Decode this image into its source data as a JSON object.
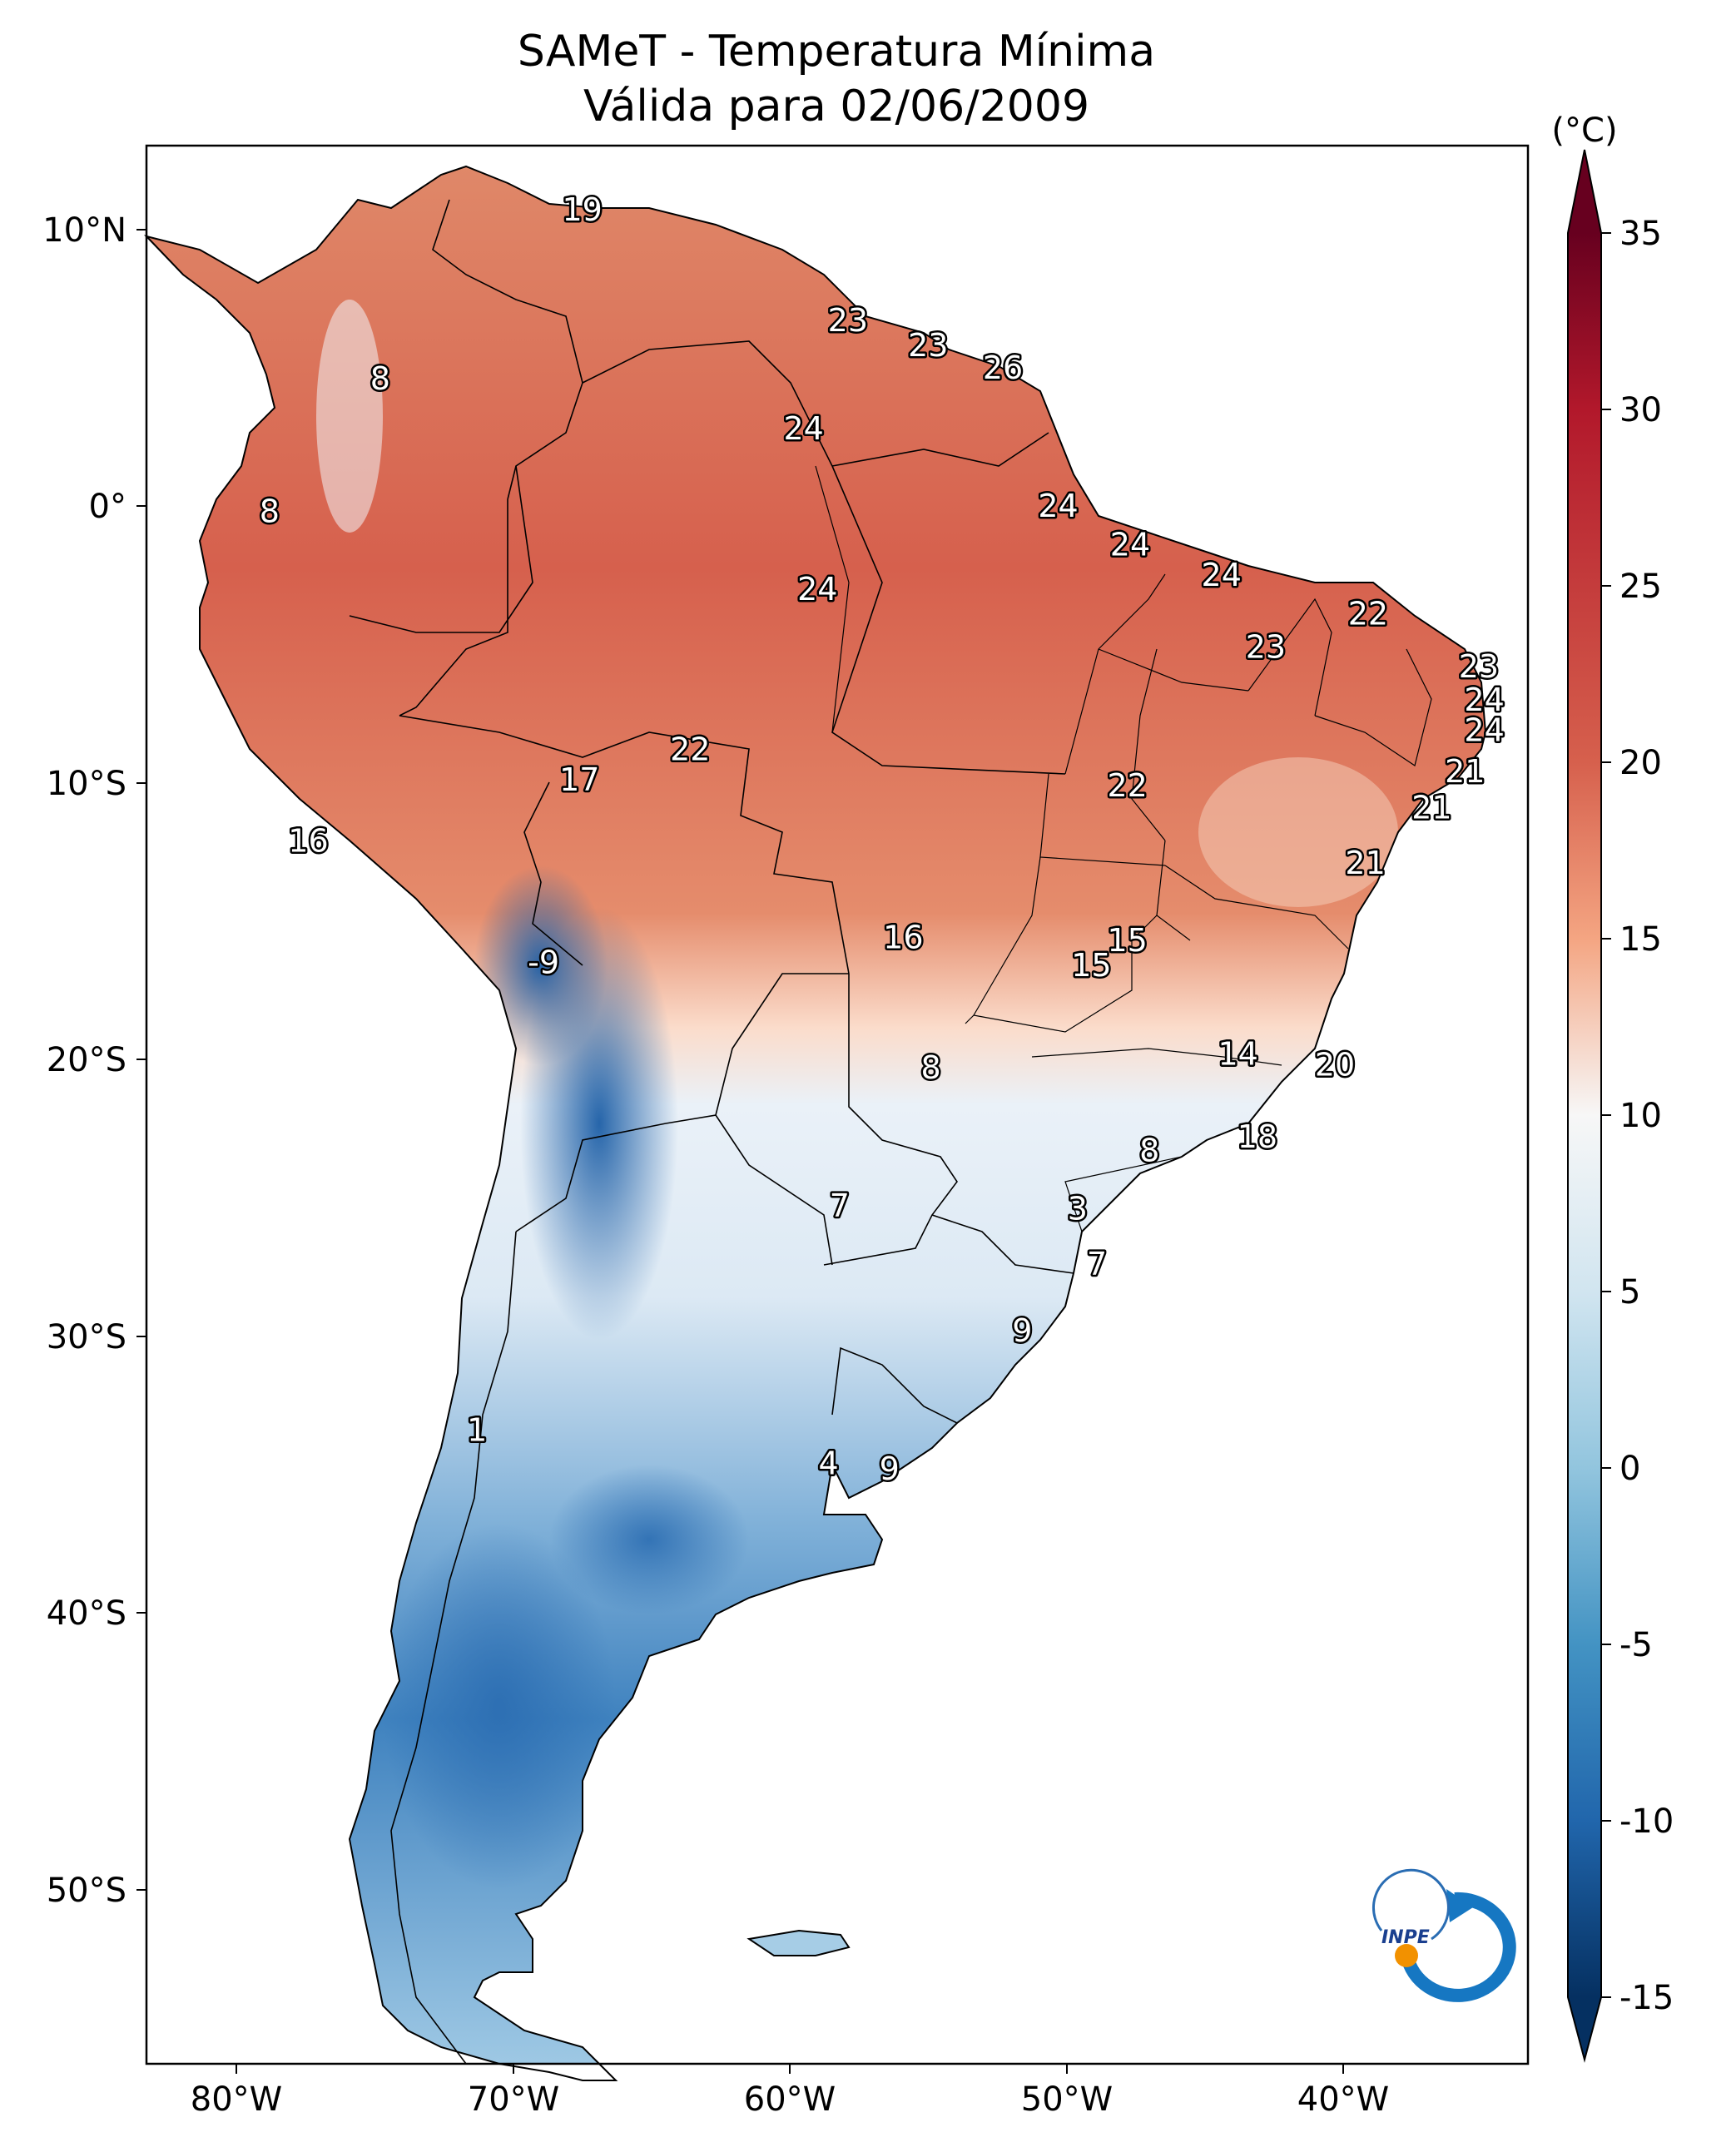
{
  "title": "SAMeT - Temperatura Mínima",
  "subtitle": "Válida para 02/06/2009",
  "colorbar": {
    "unit": "(°C)",
    "ticks": [
      "35",
      "30",
      "25",
      "20",
      "15",
      "10",
      "5",
      "0",
      "-5",
      "-10",
      "-15"
    ],
    "range": [
      -15,
      35
    ],
    "colormap": "RdBu_r",
    "colors": {
      "cold": "#08306b",
      "cool": "#4f8fc8",
      "neutral": "#f7f7f7",
      "warm": "#ef8a62",
      "hot": "#67001f"
    }
  },
  "axes": {
    "lat_labels": [
      "10°N",
      "0°",
      "10°S",
      "20°S",
      "30°S",
      "40°S",
      "50°S"
    ],
    "lon_labels": [
      "80°W",
      "70°W",
      "60°W",
      "50°W",
      "40°W"
    ]
  },
  "point_values": [
    {
      "value": "19",
      "lon": -67.5,
      "lat": 10.7
    },
    {
      "value": "23",
      "lon": -57.9,
      "lat": 6.7
    },
    {
      "value": "23",
      "lon": -55.0,
      "lat": 5.8
    },
    {
      "value": "26",
      "lon": -52.3,
      "lat": 5.0
    },
    {
      "value": "8",
      "lon": -74.8,
      "lat": 4.6
    },
    {
      "value": "24",
      "lon": -59.5,
      "lat": 2.8
    },
    {
      "value": "8",
      "lon": -78.8,
      "lat": -0.2
    },
    {
      "value": "24",
      "lon": -50.3,
      "lat": 0.0
    },
    {
      "value": "24",
      "lon": -47.7,
      "lat": -1.4
    },
    {
      "value": "24",
      "lon": -44.4,
      "lat": -2.5
    },
    {
      "value": "24",
      "lon": -59.0,
      "lat": -3.0
    },
    {
      "value": "22",
      "lon": -39.1,
      "lat": -3.9
    },
    {
      "value": "23",
      "lon": -42.8,
      "lat": -5.1
    },
    {
      "value": "23",
      "lon": -35.1,
      "lat": -5.8
    },
    {
      "value": "24",
      "lon": -34.9,
      "lat": -7.0
    },
    {
      "value": "24",
      "lon": -34.9,
      "lat": -8.1
    },
    {
      "value": "22",
      "lon": -63.6,
      "lat": -8.8
    },
    {
      "value": "21",
      "lon": -35.6,
      "lat": -9.6
    },
    {
      "value": "17",
      "lon": -67.6,
      "lat": -9.9
    },
    {
      "value": "22",
      "lon": -47.8,
      "lat": -10.1
    },
    {
      "value": "21",
      "lon": -36.8,
      "lat": -10.9
    },
    {
      "value": "16",
      "lon": -77.4,
      "lat": -12.1
    },
    {
      "value": "21",
      "lon": -39.2,
      "lat": -12.9
    },
    {
      "value": "16",
      "lon": -55.9,
      "lat": -15.6
    },
    {
      "value": "15",
      "lon": -47.8,
      "lat": -15.7
    },
    {
      "value": "15",
      "lon": -49.1,
      "lat": -16.6
    },
    {
      "value": "-9",
      "lon": -68.9,
      "lat": -16.5
    },
    {
      "value": "14",
      "lon": -43.8,
      "lat": -19.8
    },
    {
      "value": "20",
      "lon": -40.3,
      "lat": -20.2
    },
    {
      "value": "8",
      "lon": -54.9,
      "lat": -20.3
    },
    {
      "value": "18",
      "lon": -43.1,
      "lat": -22.8
    },
    {
      "value": "8",
      "lon": -47.0,
      "lat": -23.3
    },
    {
      "value": "7",
      "lon": -58.2,
      "lat": -25.3
    },
    {
      "value": "3",
      "lon": -49.6,
      "lat": -25.4
    },
    {
      "value": "7",
      "lon": -48.9,
      "lat": -27.4
    },
    {
      "value": "9",
      "lon": -51.6,
      "lat": -29.8
    },
    {
      "value": "1",
      "lon": -71.3,
      "lat": -33.4
    },
    {
      "value": "4",
      "lon": -58.6,
      "lat": -34.6
    },
    {
      "value": "9",
      "lon": -56.4,
      "lat": -34.8
    }
  ],
  "logo": {
    "text": "INPE"
  }
}
